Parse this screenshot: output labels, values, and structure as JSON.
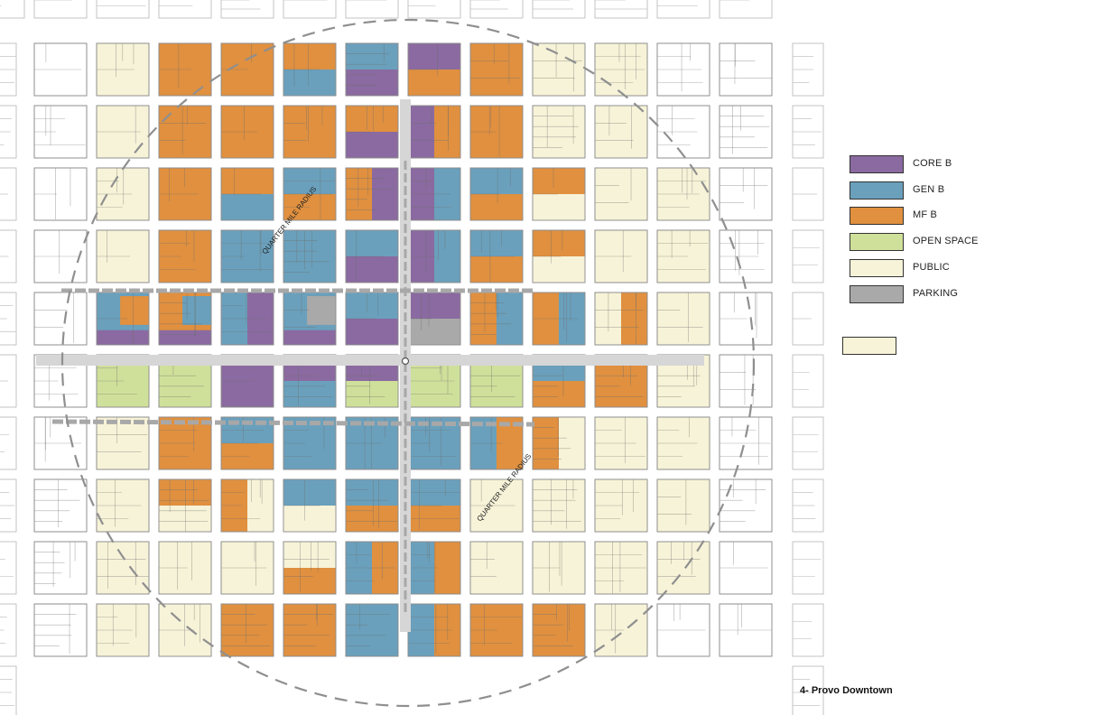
{
  "title": "4- Provo Downtown",
  "colors": {
    "core_b": "#8a6aa0",
    "gen_b": "#6aa0bc",
    "mf_b": "#e0903f",
    "open_space": "#cfe09a",
    "public": "#f7f3d8",
    "parking": "#a9a9a9",
    "street": "#dcdcdc",
    "parcel_line": "#9a9a9a"
  },
  "legend": [
    {
      "key": "core_b",
      "label": "CORE B"
    },
    {
      "key": "gen_b",
      "label": "GEN B"
    },
    {
      "key": "mf_b",
      "label": "MF B"
    },
    {
      "key": "open_space",
      "label": "OPEN SPACE"
    },
    {
      "key": "public",
      "label": "PUBLIC"
    },
    {
      "key": "parking",
      "label": "PARKING"
    }
  ],
  "legend_extra_swatch": {
    "key": "public"
  },
  "radius_labels": [
    "QUARTER MILE RADIUS",
    "QUARTER MILE RADIUS"
  ],
  "blocks": [
    [
      "U",
      "P",
      "M",
      "M",
      "MG",
      "GC",
      "CM",
      "M",
      "P",
      "P",
      "U",
      "U"
    ],
    [
      "U",
      "P",
      "M",
      "M",
      "M",
      "MC",
      "CM",
      "M",
      "P",
      "P",
      "U",
      "U"
    ],
    [
      "U",
      "P",
      "M",
      "MG",
      "GM",
      "MC",
      "CG",
      "GM",
      "MP",
      "P",
      "P",
      "U"
    ],
    [
      "U",
      "P",
      "M",
      "G",
      "G",
      "GC",
      "CG",
      "GM",
      "MP",
      "P",
      "P",
      "U"
    ],
    [
      "U",
      "GMC",
      "MGC",
      "GC",
      "GKC",
      "GC",
      "CK",
      "MG",
      "MG",
      "PM",
      "P",
      "U"
    ],
    [
      "U",
      "O",
      "O",
      "C",
      "CG",
      "CO",
      "O",
      "O",
      "GM",
      "M",
      "P",
      "U"
    ],
    [
      "U",
      "P",
      "M",
      "GM",
      "G",
      "G",
      "G",
      "GM",
      "MP",
      "P",
      "P",
      "U"
    ],
    [
      "U",
      "P",
      "MP",
      "MP",
      "GP",
      "GM",
      "GM",
      "P",
      "P",
      "P",
      "P",
      "U"
    ],
    [
      "U",
      "P",
      "P",
      "P",
      "PM",
      "GM",
      "GM",
      "P",
      "P",
      "P",
      "P",
      "U"
    ],
    [
      "U",
      "P",
      "P",
      "M",
      "M",
      "G",
      "GM",
      "M",
      "M",
      "P",
      "U",
      "U"
    ]
  ]
}
